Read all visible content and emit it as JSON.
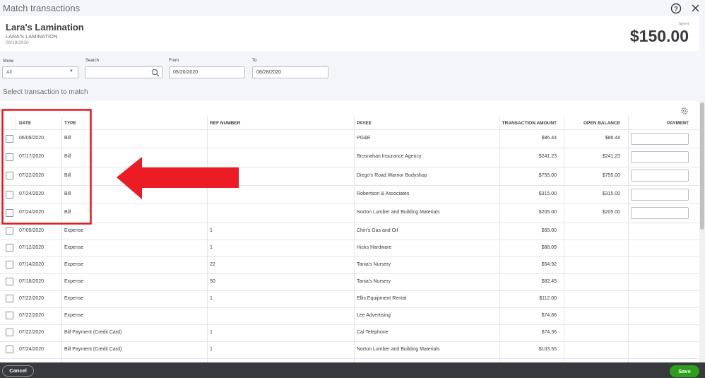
{
  "header": {
    "title": "Match transactions",
    "payee": "Lara's Lamination",
    "payee_sub": "LARA'S LAMINATION",
    "date": "08/18/2020",
    "amount_label": "Spent",
    "amount": "$150.00"
  },
  "filters": {
    "show_label": "Show",
    "show_value": "All",
    "search_label": "Search",
    "from_label": "From",
    "from_value": "05/20/2020",
    "to_label": "To",
    "to_value": "08/28/2020"
  },
  "section_title": "Select transaction to match",
  "table": {
    "columns": [
      "DATE",
      "TYPE",
      "REF NUMBER",
      "PAYEE",
      "TRANSACTION AMOUNT",
      "OPEN BALANCE",
      "PAYMENT"
    ],
    "rows": [
      [
        "06/09/2020",
        "Bill",
        null,
        "PG&E",
        "$86.44",
        "$86.44"
      ],
      [
        "07/17/2020",
        "Bill",
        null,
        "Brosnahan Insurance Agency",
        "$241.23",
        "$241.23"
      ],
      [
        "07/22/2020",
        "Bill",
        null,
        "Diego's Road Warrior Bodyshop",
        "$755.00",
        "$755.00"
      ],
      [
        "07/24/2020",
        "Bill",
        null,
        "Robertson & Associates",
        "$315.00",
        "$315.00"
      ],
      [
        "07/24/2020",
        "Bill",
        null,
        "Norton Lumber and Building Materials",
        "$205.00",
        "$205.00"
      ],
      [
        "07/09/2020",
        "Expense",
        "1",
        "Chin's Gas and Oil",
        "$65.00",
        null
      ],
      [
        "07/12/2020",
        "Expense",
        "1",
        "Hicks Hardware",
        "$88.09",
        null
      ],
      [
        "07/14/2020",
        "Expense",
        "22",
        "Tania's Nursery",
        "$54.92",
        null
      ],
      [
        "07/18/2020",
        "Expense",
        "50",
        "Tania's Nursery",
        "$82.45",
        null
      ],
      [
        "07/22/2020",
        "Expense",
        "1",
        "Ellis Equipment Rental",
        "$112.00",
        null
      ],
      [
        "07/22/2020",
        "Expense",
        null,
        "Lee Advertising",
        "$74.86",
        null
      ],
      [
        "07/22/2020",
        "Bill Payment (Credit Card)",
        "1",
        "Cal Telephone",
        "$74.36",
        null
      ],
      [
        "07/24/2020",
        "Bill Payment (Credit Card)",
        "1",
        "Norton Lumber and Building Materials",
        "$103.55",
        null
      ]
    ]
  },
  "footer": {
    "cancel": "Cancel",
    "save": "Save"
  }
}
